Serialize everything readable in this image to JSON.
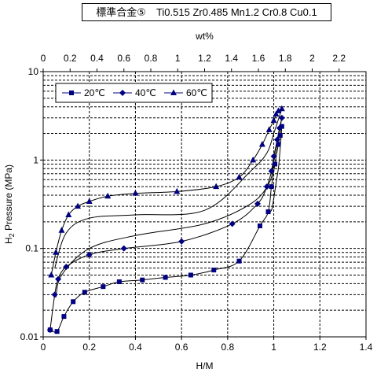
{
  "chart_data": {
    "type": "line",
    "title": "標準合金⑤　Ti0.515 Zr0.485 Mn1.2 Cr0.8 Cu0.1",
    "xlabel": "H/M",
    "ylabel_main": "H",
    "ylabel_sub": "2",
    "ylabel_rest": " Pressure (MPa)",
    "top_xlabel": "wt%",
    "xlim": [
      0,
      1.4
    ],
    "ylim": [
      0.01,
      10
    ],
    "y_scale": "log",
    "top_xlim": [
      0,
      2.4
    ],
    "grid": true,
    "legend_position": "top-left",
    "x_ticks": [
      "0",
      "0.2",
      "0.4",
      "0.6",
      "0.8",
      "1",
      "1.2",
      "1.4"
    ],
    "y_ticks": [
      "0.01",
      "0.1",
      "1",
      "10"
    ],
    "top_ticks": [
      "0",
      "0.2",
      "0.4",
      "0.6",
      "0.8",
      "1",
      "1.2",
      "1.4",
      "1.6",
      "1.8",
      "2",
      "2.2"
    ],
    "series_color": "#000080",
    "series": [
      {
        "name": "20℃",
        "marker": "square",
        "x": [
          0.03,
          0.06,
          0.09,
          0.13,
          0.18,
          0.26,
          0.33,
          0.43,
          0.53,
          0.64,
          0.74,
          0.85,
          0.94,
          0.976,
          0.99,
          1.005,
          1.02,
          1.028,
          1.035
        ],
        "y": [
          0.012,
          0.0115,
          0.017,
          0.025,
          0.032,
          0.037,
          0.042,
          0.044,
          0.047,
          0.05,
          0.057,
          0.072,
          0.18,
          0.26,
          0.5,
          0.9,
          1.5,
          1.9,
          2.4
        ],
        "x_return": [
          1.035,
          1.03,
          1.025,
          1.02,
          1.01,
          1.0,
          0.99,
          0.97
        ],
        "y_return": [
          2.4,
          1.6,
          1.1,
          0.8,
          0.55,
          0.37,
          0.27,
          0.25
        ]
      },
      {
        "name": "40℃",
        "marker": "diamond",
        "x": [
          0.03,
          0.05,
          0.065,
          0.1,
          0.2,
          0.35,
          0.6,
          0.82,
          0.93,
          0.97,
          0.99,
          1.0,
          1.015,
          1.025,
          1.035
        ],
        "y": [
          0.012,
          0.03,
          0.045,
          0.062,
          0.085,
          0.1,
          0.12,
          0.19,
          0.32,
          0.5,
          0.75,
          1.1,
          1.7,
          2.3,
          3.0
        ],
        "x_return": [
          1.035,
          1.02,
          1.0,
          0.98,
          0.9,
          0.7,
          0.4,
          0.2,
          0.08,
          0.055
        ],
        "y_return": [
          3.0,
          1.8,
          0.95,
          0.55,
          0.32,
          0.19,
          0.14,
          0.1,
          0.05,
          0.028
        ]
      },
      {
        "name": "60℃",
        "marker": "triangle",
        "x": [
          0.035,
          0.055,
          0.08,
          0.11,
          0.15,
          0.2,
          0.28,
          0.4,
          0.58,
          0.75,
          0.85,
          0.91,
          0.95,
          0.98,
          1.0,
          1.01,
          1.02,
          1.035
        ],
        "y": [
          0.05,
          0.09,
          0.16,
          0.24,
          0.3,
          0.34,
          0.39,
          0.42,
          0.44,
          0.5,
          0.64,
          1.0,
          1.5,
          2.2,
          2.8,
          3.3,
          3.6,
          3.8
        ],
        "x_return": [
          1.035,
          1.0,
          0.97,
          0.9,
          0.7,
          0.4,
          0.2,
          0.1,
          0.05
        ],
        "y_return": [
          3.8,
          2.0,
          1.2,
          0.75,
          0.27,
          0.24,
          0.22,
          0.15,
          0.06
        ]
      }
    ]
  }
}
